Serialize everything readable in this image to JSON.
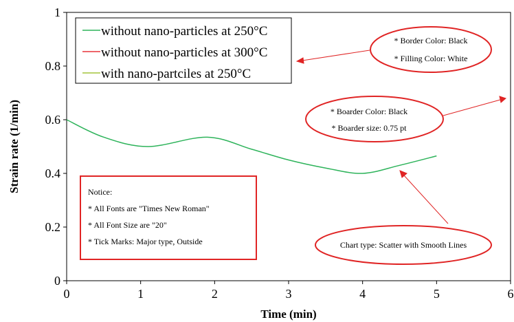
{
  "chart_data": {
    "type": "scatter",
    "xlabel": "Time (min)",
    "ylabel": "Strain rate (1/min)",
    "xlim": [
      0,
      6
    ],
    "ylim": [
      0,
      1
    ],
    "xticks": [
      "0",
      "1",
      "2",
      "3",
      "4",
      "5",
      "6"
    ],
    "yticks": [
      "0",
      "0.2",
      "0.4",
      "0.6",
      "0.8",
      "1"
    ],
    "grid": false,
    "legend_position": "top-left",
    "series": [
      {
        "name": "without nano-particles at 250°C",
        "color": "#2db35a",
        "x": [
          0,
          0.5,
          1.1,
          1.9,
          2.5,
          3.0,
          3.5,
          4.0,
          4.5,
          5.0
        ],
        "y": [
          0.6,
          0.535,
          0.5,
          0.535,
          0.49,
          0.45,
          0.42,
          0.4,
          0.43,
          0.465
        ]
      },
      {
        "name": "without nano-particles at 300°C",
        "color": "#e8343a",
        "x": [],
        "y": []
      },
      {
        "name": "with nano-partciles at 250°C",
        "color": "#a4c43a",
        "x": [],
        "y": []
      }
    ],
    "annotations": {
      "legend_note": [
        "* Border Color: Black",
        "* Filling Color: White"
      ],
      "plot_note": [
        "* Boarder Color: Black",
        "* Boarder size: 0.75 pt"
      ],
      "type_note": "Chart type: Scatter with Smooth Lines",
      "notice": [
        "Notice:",
        "* All Fonts are \"Times New Roman\"",
        "* All Font Size are \"20\"",
        "* Tick Marks: Major type, Outside"
      ]
    },
    "annotation_color": "#e02424"
  }
}
